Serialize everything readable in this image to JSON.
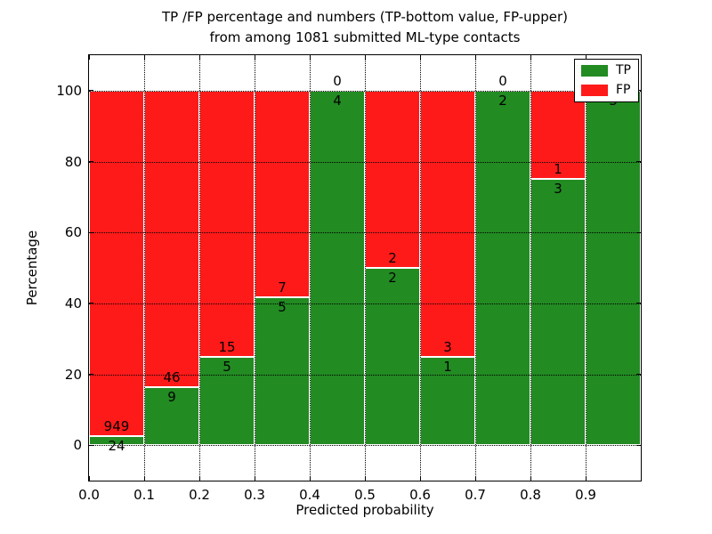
{
  "title": {
    "line1": "TP /FP percentage and numbers (TP-bottom value, FP-upper)",
    "line2": "from among 1081 submitted ML-type contacts"
  },
  "chart_data": {
    "type": "bar",
    "stacked": true,
    "normalized_to_percent": true,
    "categories": [
      "0.0-0.1",
      "0.1-0.2",
      "0.2-0.3",
      "0.3-0.4",
      "0.4-0.5",
      "0.5-0.6",
      "0.6-0.7",
      "0.7-0.8",
      "0.8-0.9",
      "0.9-1.0"
    ],
    "x_edges": [
      0.0,
      0.1,
      0.2,
      0.3,
      0.4,
      0.5,
      0.6,
      0.7,
      0.8,
      0.9,
      1.0
    ],
    "series": [
      {
        "name": "TP",
        "color": "#228B22",
        "counts": [
          24,
          9,
          5,
          5,
          4,
          2,
          1,
          2,
          3,
          3
        ]
      },
      {
        "name": "FP",
        "color": "#FF1A1A",
        "counts": [
          949,
          46,
          15,
          7,
          0,
          2,
          3,
          0,
          1,
          0
        ]
      }
    ],
    "bar_edge_color": "#ffffff",
    "xlabel": "Predicted probability",
    "ylabel": "Percentage",
    "x_ticks": [
      "0.0",
      "0.1",
      "0.2",
      "0.3",
      "0.4",
      "0.5",
      "0.6",
      "0.7",
      "0.8",
      "0.9"
    ],
    "y_ticks": [
      "0",
      "20",
      "40",
      "60",
      "80",
      "100"
    ],
    "xlim": [
      0.0,
      1.0
    ],
    "ylim": [
      -10,
      110
    ],
    "grid": "dotted",
    "legend_position": "upper right"
  }
}
